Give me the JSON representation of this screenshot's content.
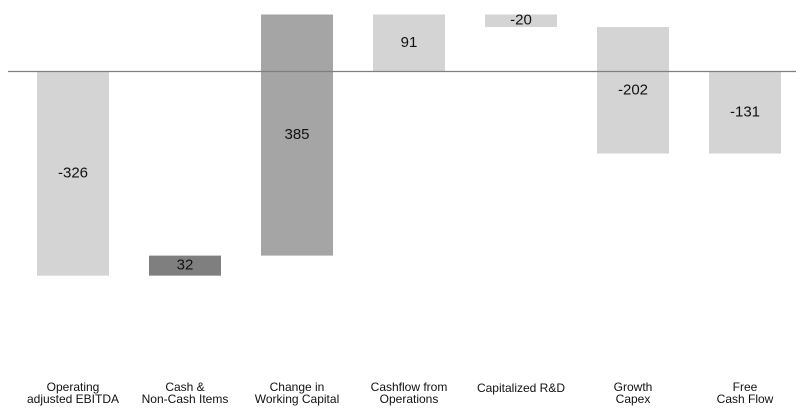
{
  "chart_data": {
    "type": "bar",
    "subtype": "waterfall",
    "categories": [
      [
        "Operating",
        "adjusted EBITDA"
      ],
      [
        "Cash &",
        "Non-Cash Items"
      ],
      [
        "Change in",
        "Working Capital"
      ],
      [
        "Cashflow from",
        "Operations"
      ],
      [
        "Capitalized R&D"
      ],
      [
        "Growth",
        "Capex"
      ],
      [
        "Free",
        "Cash Flow"
      ]
    ],
    "values": [
      -326,
      32,
      385,
      91,
      -20,
      -202,
      -131
    ],
    "value_labels": [
      "-326",
      "32",
      "385",
      "91",
      "-20",
      "-202",
      "-131"
    ],
    "bar_start": [
      0,
      -326,
      -294,
      0,
      91,
      71,
      0
    ],
    "bar_end": [
      -326,
      -294,
      91,
      91,
      71,
      -131,
      -131
    ],
    "ylim": [
      -400,
      95
    ],
    "baseline": 0,
    "grid": false,
    "legend": "none",
    "colors": {
      "light_bar": "#d4d4d4",
      "mid_bar": "#a5a5a5",
      "dark_bar": "#7f7f7f",
      "baseline": "#7f7f7f",
      "text": "#111111"
    },
    "bar_color_keys": [
      "light_bar",
      "dark_bar",
      "mid_bar",
      "light_bar",
      "light_bar",
      "light_bar",
      "light_bar"
    ]
  }
}
